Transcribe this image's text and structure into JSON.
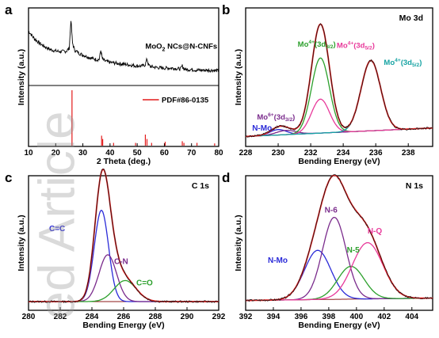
{
  "watermark": "ed Article",
  "chart_data": [
    {
      "panel": "a",
      "type": "line",
      "xlabel": "2 Theta (deg.)",
      "ylabel": "Intensity (a.u.)",
      "xlim": [
        10,
        80
      ],
      "xticks": [
        10,
        20,
        30,
        40,
        50,
        60,
        70,
        80
      ],
      "series": [
        {
          "name": "MoO2 NCs@N-CNFs",
          "label_main": "MoO",
          "label_sub": "2",
          "label_rest": " NCs@N-CNFs",
          "color": "#000000",
          "x": [
            10,
            12,
            14,
            16,
            18,
            20,
            22,
            24,
            25,
            25.6,
            26.2,
            27,
            29,
            31,
            33,
            35,
            36,
            36.6,
            37.2,
            38,
            40,
            42,
            44,
            46,
            48,
            50,
            52,
            53,
            53.6,
            54.2,
            55,
            57,
            59,
            61,
            63,
            65,
            66,
            66.6,
            67.2,
            68,
            70,
            72,
            74,
            76,
            78,
            80
          ],
          "y": [
            0.72,
            0.62,
            0.55,
            0.5,
            0.46,
            0.44,
            0.43,
            0.44,
            0.48,
            0.88,
            0.55,
            0.45,
            0.4,
            0.37,
            0.34,
            0.32,
            0.32,
            0.45,
            0.33,
            0.3,
            0.28,
            0.27,
            0.26,
            0.25,
            0.24,
            0.23,
            0.23,
            0.25,
            0.33,
            0.24,
            0.22,
            0.21,
            0.2,
            0.2,
            0.2,
            0.19,
            0.19,
            0.23,
            0.19,
            0.18,
            0.18,
            0.17,
            0.17,
            0.17,
            0.17,
            0.16
          ]
        }
      ],
      "reference": {
        "name": "PDF#86-0135",
        "color": "#e21a1a",
        "peaks": [
          {
            "x": 26.0,
            "h": 1.0
          },
          {
            "x": 36.9,
            "h": 0.18
          },
          {
            "x": 37.3,
            "h": 0.12
          },
          {
            "x": 41.3,
            "h": 0.05
          },
          {
            "x": 49.4,
            "h": 0.05
          },
          {
            "x": 53.0,
            "h": 0.2
          },
          {
            "x": 53.6,
            "h": 0.12
          },
          {
            "x": 55.3,
            "h": 0.05
          },
          {
            "x": 60.3,
            "h": 0.07
          },
          {
            "x": 66.6,
            "h": 0.08
          },
          {
            "x": 67.2,
            "h": 0.05
          },
          {
            "x": 72.0,
            "h": 0.05
          },
          {
            "x": 78.5,
            "h": 0.04
          }
        ]
      }
    },
    {
      "panel": "b",
      "type": "line",
      "title": "Mo 3d",
      "xlabel": "Bending Energy (eV)",
      "ylabel": "Intensity (a.u.)",
      "xlim": [
        228,
        239.5
      ],
      "xticks": [
        228,
        230,
        232,
        234,
        236,
        238
      ],
      "components": [
        {
          "label": "N-Mo",
          "color": "#2b2bd8",
          "center": 230.0,
          "width": 0.5,
          "height": 0.045
        },
        {
          "label_main": "Mo",
          "label_sup": "6+",
          "label_open": "(3d",
          "label_sub": "3/2",
          "label_close": ")",
          "color": "#7a2b8c",
          "center": 230.5,
          "width": 0.6,
          "height": 0.035
        },
        {
          "label_main": "Mo",
          "label_sup": "4+",
          "label_open": "(3d",
          "label_sub": "3/2",
          "label_close": ")",
          "color": "#2ca02c",
          "center": 232.6,
          "width": 0.55,
          "height": 0.62
        },
        {
          "label_main": "Mo",
          "label_sup": "4+",
          "label_open": "(3d",
          "label_sub": "5/2",
          "label_close": ")",
          "color": "#e8399a",
          "center": 232.6,
          "width": 0.55,
          "height": 0.28
        },
        {
          "label_main": "Mo",
          "label_sup": "4+",
          "label_open": "(3d",
          "label_sub": "5/2",
          "label_close": ")",
          "color": "#16a3a3",
          "center": 235.7,
          "width": 0.6,
          "height": 0.58
        }
      ]
    },
    {
      "panel": "c",
      "type": "line",
      "title": "C 1s",
      "xlabel": "Bending Energy (eV)",
      "ylabel": "Intensity (a.u.)",
      "xlim": [
        280,
        292
      ],
      "xticks": [
        280,
        282,
        284,
        286,
        288,
        290,
        292
      ],
      "components": [
        {
          "label": "C=C",
          "color": "#2b2bd8",
          "center": 284.6,
          "width": 0.45,
          "height": 0.78
        },
        {
          "label": "C-N",
          "color": "#7a2b8c",
          "center": 285.0,
          "width": 0.55,
          "height": 0.4
        },
        {
          "label": "C=O",
          "color": "#2ca02c",
          "center": 286.1,
          "width": 0.7,
          "height": 0.18
        }
      ]
    },
    {
      "panel": "d",
      "type": "line",
      "title": "N 1s",
      "xlabel": "Bending Energy (eV)",
      "ylabel": "Intensity (a.u.)",
      "xlim": [
        392,
        405.5
      ],
      "xticks": [
        392,
        394,
        396,
        398,
        400,
        402,
        404
      ],
      "components": [
        {
          "label": "N-Mo",
          "color": "#2b2bd8",
          "center": 397.2,
          "width": 0.95,
          "height": 0.42
        },
        {
          "label": "N-6",
          "color": "#7a2b8c",
          "center": 398.4,
          "width": 0.85,
          "height": 0.7
        },
        {
          "label": "N-5",
          "color": "#2ca02c",
          "center": 399.6,
          "width": 0.95,
          "height": 0.28
        },
        {
          "label": "N-Q",
          "color": "#e8399a",
          "center": 400.8,
          "width": 1.1,
          "height": 0.48
        }
      ]
    }
  ]
}
